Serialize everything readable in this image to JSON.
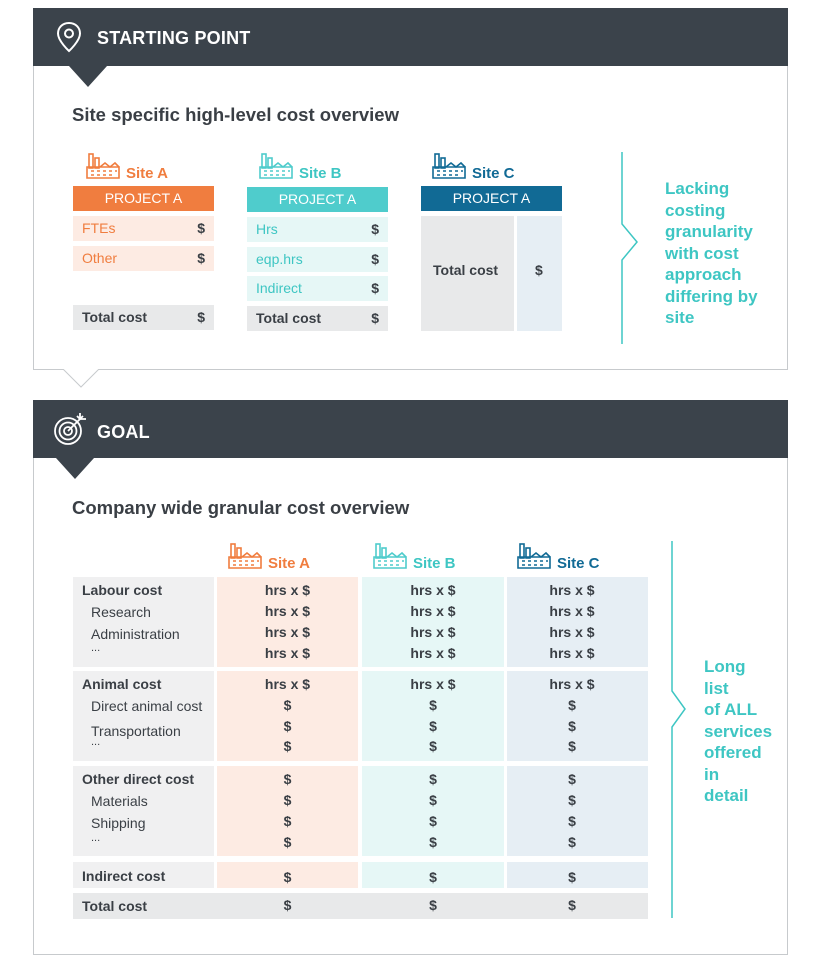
{
  "colors": {
    "header_bg": "#3b434b",
    "site_a": "#f07d3f",
    "site_b": "#4fcccc",
    "site_c": "#116a95",
    "accent": "#3ec6c3",
    "total_bg": "#e8e9ea"
  },
  "starting": {
    "header": "STARTING POINT",
    "header_icon": "location-pin-icon",
    "subtitle": "Site specific high-level cost overview",
    "site_a": {
      "name": "Site A",
      "project": "PROJECT A",
      "rows": [
        {
          "label": "FTEs",
          "value": "$"
        },
        {
          "label": "Other",
          "value": "$"
        }
      ],
      "total": {
        "label": "Total cost",
        "value": "$"
      }
    },
    "site_b": {
      "name": "Site B",
      "project": "PROJECT A",
      "rows": [
        {
          "label": "Hrs",
          "value": "$"
        },
        {
          "label": "eqp.hrs",
          "value": "$"
        },
        {
          "label": "Indirect",
          "value": "$"
        }
      ],
      "total": {
        "label": "Total cost",
        "value": "$"
      }
    },
    "site_c": {
      "name": "Site C",
      "project": "PROJECT A",
      "total": {
        "label": "Total cost",
        "value": "$"
      }
    },
    "callout": [
      "Lacking",
      "costing",
      "granularity",
      "with cost",
      "approach",
      "differing by",
      "site"
    ]
  },
  "goal": {
    "header": "GOAL",
    "header_icon": "target-icon",
    "subtitle": "Company wide granular cost overview",
    "sites": [
      "Site A",
      "Site B",
      "Site C"
    ],
    "groups": [
      {
        "title": "Labour cost",
        "title_values": [
          "hrs x $",
          "hrs x $",
          "hrs x $"
        ],
        "items": [
          {
            "label": "Research",
            "values": [
              "hrs x $",
              "hrs x $",
              "hrs x $"
            ]
          },
          {
            "label": "Administration",
            "values": [
              "hrs x $",
              "hrs x $",
              "hrs x $"
            ]
          },
          {
            "label": "...",
            "values": [
              "hrs x $",
              "hrs x $",
              "hrs x $"
            ]
          }
        ]
      },
      {
        "title": "Animal cost",
        "title_values": [
          "hrs x $",
          "hrs x $",
          "hrs x $"
        ],
        "items": [
          {
            "label": "Direct animal cost",
            "values": [
              "$",
              "$",
              "$"
            ]
          },
          {
            "label": "Transportation",
            "values": [
              "$",
              "$",
              "$"
            ]
          },
          {
            "label": "...",
            "values": [
              "$",
              "$",
              "$"
            ]
          }
        ]
      },
      {
        "title": "Other direct cost",
        "title_values": [
          "$",
          "$",
          "$"
        ],
        "items": [
          {
            "label": "Materials",
            "values": [
              "$",
              "$",
              "$"
            ]
          },
          {
            "label": "Shipping",
            "values": [
              "$",
              "$",
              "$"
            ]
          },
          {
            "label": "...",
            "values": [
              "$",
              "$",
              "$"
            ]
          }
        ]
      }
    ],
    "indirect": {
      "label": "Indirect cost",
      "values": [
        "$",
        "$",
        "$"
      ]
    },
    "total": {
      "label": "Total cost",
      "values": [
        "$",
        "$",
        "$"
      ]
    },
    "callout": [
      "Long",
      "list",
      "of ALL",
      "services",
      "offered",
      "in",
      "detail"
    ]
  }
}
